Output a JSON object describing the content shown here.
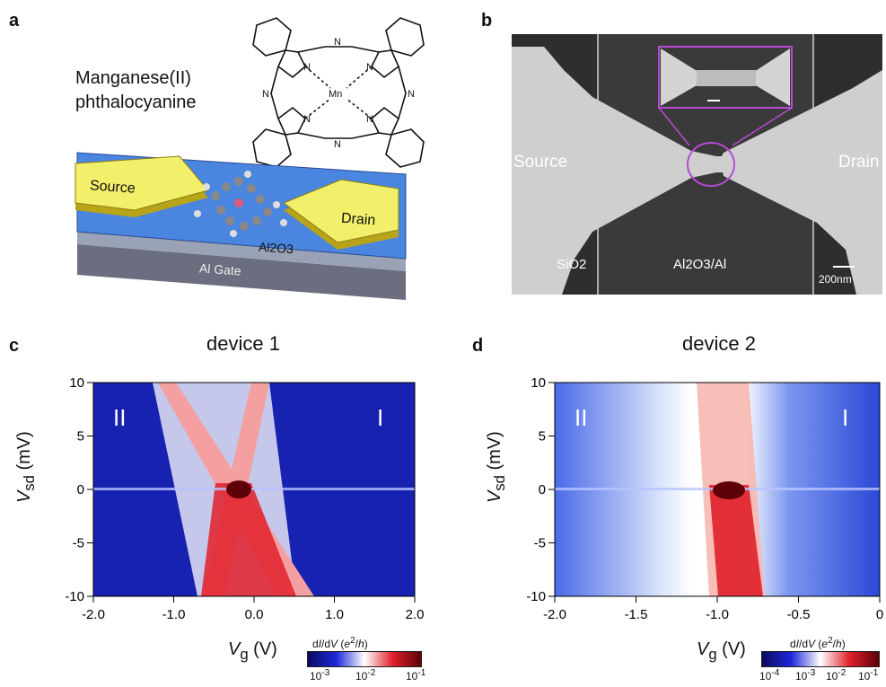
{
  "panel_a": {
    "letter": "a",
    "molecule_name_line1": "Manganese(II)",
    "molecule_name_line2": "phthalocyanine",
    "atom_n": "N",
    "atom_mn": "Mn",
    "source": "Source",
    "drain": "Drain",
    "oxide": "Al2O3",
    "gate": "Al Gate"
  },
  "panel_b": {
    "letter": "b",
    "source": "Source",
    "drain": "Drain",
    "substrate": "SiO2",
    "gate_stack": "Al2O3/Al",
    "scale_bar": "200nm"
  },
  "chart_data": [
    {
      "panel": "c",
      "type": "heatmap",
      "title": "device 1",
      "xlabel": "Vg (V)",
      "ylabel": "Vsd (mV)",
      "xlim": [
        -2.0,
        2.0
      ],
      "ylim": [
        -10,
        10
      ],
      "xticks": [
        "-2.0",
        "-1.0",
        "0.0",
        "1.0",
        "2.0"
      ],
      "yticks": [
        "10",
        "5",
        "0",
        "-5",
        "-10"
      ],
      "regions": [
        "II",
        "I"
      ],
      "colorbar": {
        "label": "dI/dV (e2/h)",
        "ticks": [
          "10-3",
          "10-2",
          "10-1"
        ],
        "colors": [
          "#0b0a5e",
          "#1e28d8",
          "#ffffff",
          "#e0202a",
          "#5e0008"
        ]
      }
    },
    {
      "panel": "d",
      "type": "heatmap",
      "title": "device 2",
      "xlabel": "Vg (V)",
      "ylabel": "Vsd (mV)",
      "xlim": [
        -2.0,
        0
      ],
      "ylim": [
        -10,
        10
      ],
      "xticks": [
        "-2.0",
        "-1.5",
        "-1.0",
        "-0.5",
        "0"
      ],
      "yticks": [
        "10",
        "5",
        "0",
        "-5",
        "-10"
      ],
      "regions": [
        "II",
        "I"
      ],
      "colorbar": {
        "label": "dI/dV (e2/h)",
        "ticks": [
          "10-4",
          "10-3",
          "10-2",
          "10-1"
        ],
        "colors": [
          "#0b0a5e",
          "#1e28d8",
          "#ffffff",
          "#e0202a",
          "#5e0008"
        ]
      }
    }
  ]
}
